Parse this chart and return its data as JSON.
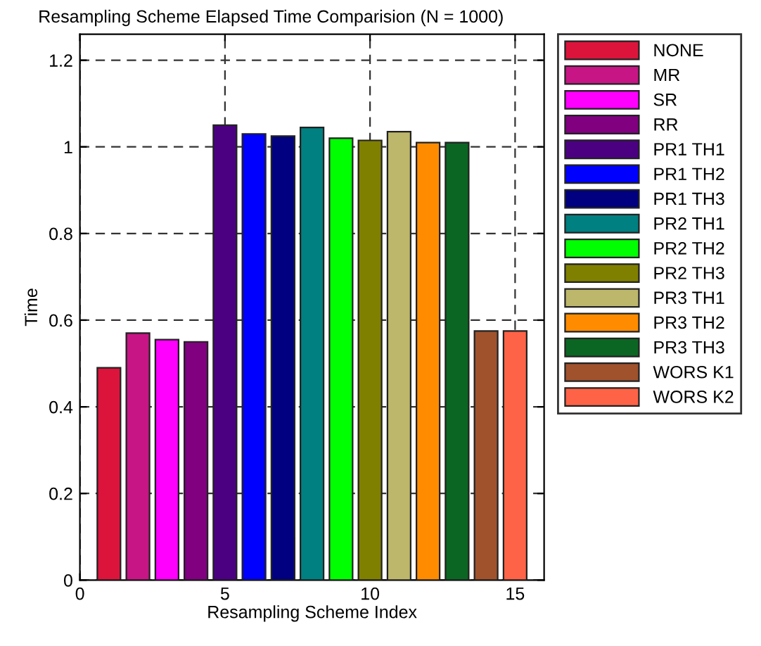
{
  "chart_data": {
    "type": "bar",
    "title": "Resampling Scheme Elapsed Time Comparision (N = 1000)",
    "xlabel": "Resampling Scheme Index",
    "ylabel": "Time",
    "xlim": [
      0,
      16
    ],
    "xticks": [
      0,
      5,
      10,
      15
    ],
    "ylim": [
      0,
      1.26
    ],
    "yticks": [
      0,
      0.2,
      0.4,
      0.6,
      0.8,
      1,
      1.2
    ],
    "grid": true,
    "legend": "right",
    "series": [
      {
        "name": "NONE",
        "color": "#dc143c",
        "x": [
          1
        ],
        "values": [
          0.49
        ]
      },
      {
        "name": "MR",
        "color": "#c71585",
        "x": [
          2
        ],
        "values": [
          0.57
        ]
      },
      {
        "name": "SR",
        "color": "#ff00ff",
        "x": [
          3
        ],
        "values": [
          0.555
        ]
      },
      {
        "name": "RR",
        "color": "#800080",
        "x": [
          4
        ],
        "values": [
          0.55
        ]
      },
      {
        "name": "PR1 TH1",
        "color": "#4b0082",
        "x": [
          5
        ],
        "values": [
          1.05
        ]
      },
      {
        "name": "PR1 TH2",
        "color": "#0000ff",
        "x": [
          6
        ],
        "values": [
          1.03
        ]
      },
      {
        "name": "PR1 TH3",
        "color": "#000080",
        "x": [
          7
        ],
        "values": [
          1.025
        ]
      },
      {
        "name": "PR2 TH1",
        "color": "#008080",
        "x": [
          8
        ],
        "values": [
          1.045
        ]
      },
      {
        "name": "PR2 TH2",
        "color": "#00ff00",
        "x": [
          9
        ],
        "values": [
          1.02
        ]
      },
      {
        "name": "PR2 TH3",
        "color": "#808000",
        "x": [
          10
        ],
        "values": [
          1.015
        ]
      },
      {
        "name": "PR3 TH1",
        "color": "#bdb76b",
        "x": [
          11
        ],
        "values": [
          1.035
        ]
      },
      {
        "name": "PR3 TH2",
        "color": "#ff8c00",
        "x": [
          12
        ],
        "values": [
          1.01
        ]
      },
      {
        "name": "PR3 TH3",
        "color": "#0b6623",
        "x": [
          13
        ],
        "values": [
          1.01
        ]
      },
      {
        "name": "WORS K1",
        "color": "#a0522d",
        "x": [
          14
        ],
        "values": [
          0.575
        ]
      },
      {
        "name": "WORS K2",
        "color": "#ff6347",
        "x": [
          15
        ],
        "values": [
          0.575
        ]
      }
    ]
  }
}
